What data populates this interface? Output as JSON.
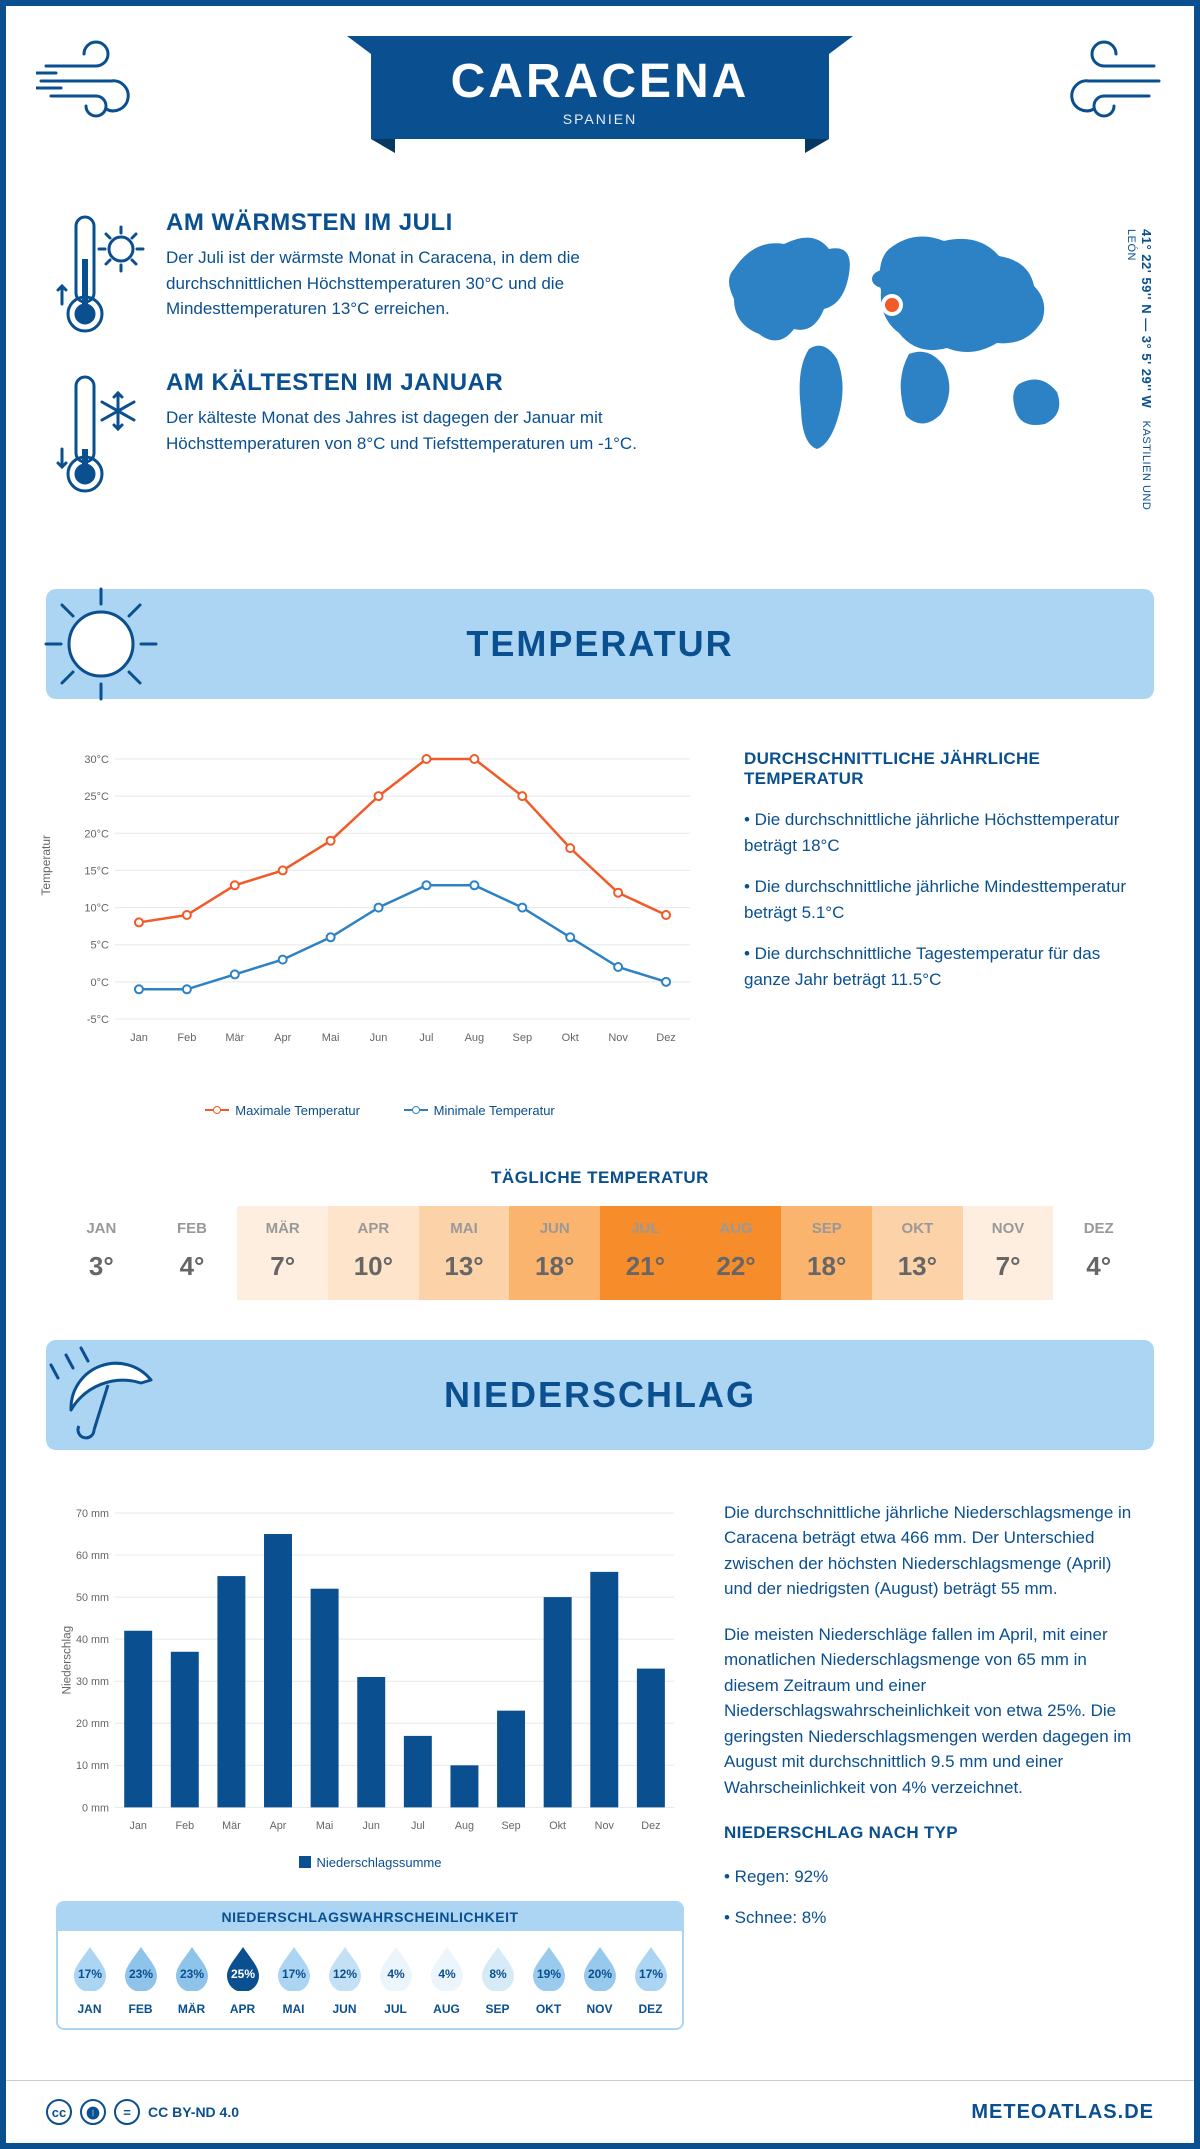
{
  "colors": {
    "primary": "#0a4f8f",
    "lightblue": "#abd5f3",
    "midblue": "#2d82c6",
    "orange": "#f15a29",
    "grid": "#e8e8e8"
  },
  "header": {
    "title": "CARACENA",
    "subtitle": "SPANIEN"
  },
  "coords": {
    "text": "41° 22' 59'' N — 3° 5' 29'' W",
    "region": "KASTILIEN UND LEÓN"
  },
  "intro": {
    "warm": {
      "heading": "AM WÄRMSTEN IM JULI",
      "text": "Der Juli ist der wärmste Monat in Caracena, in dem die durchschnittlichen Höchsttemperaturen 30°C und die Mindesttemperaturen 13°C erreichen."
    },
    "cold": {
      "heading": "AM KÄLTESTEN IM JANUAR",
      "text": "Der kälteste Monat des Jahres ist dagegen der Januar mit Höchsttemperaturen von 8°C und Tiefsttemperaturen um -1°C."
    }
  },
  "temperature": {
    "section_title": "TEMPERATUR",
    "ylabel": "Temperatur",
    "months": [
      "Jan",
      "Feb",
      "Mär",
      "Apr",
      "Mai",
      "Jun",
      "Jul",
      "Aug",
      "Sep",
      "Okt",
      "Nov",
      "Dez"
    ],
    "yticks": [
      "-5°C",
      "0°C",
      "5°C",
      "10°C",
      "15°C",
      "20°C",
      "25°C",
      "30°C"
    ],
    "ymin": -5,
    "ymax": 30,
    "series": {
      "max": {
        "label": "Maximale Temperatur",
        "color": "#f15a29",
        "values": [
          8,
          9,
          13,
          15,
          19,
          25,
          30,
          30,
          25,
          18,
          12,
          9
        ]
      },
      "min": {
        "label": "Minimale Temperatur",
        "color": "#2d82c6",
        "values": [
          -1,
          -1,
          1,
          3,
          6,
          10,
          13,
          13,
          10,
          6,
          2,
          0
        ]
      }
    },
    "info": {
      "heading": "DURCHSCHNITTLICHE JÄHRLICHE TEMPERATUR",
      "bullets": [
        "• Die durchschnittliche jährliche Höchsttemperatur beträgt 18°C",
        "• Die durchschnittliche jährliche Mindesttemperatur beträgt 5.1°C",
        "• Die durchschnittliche Tagestemperatur für das ganze Jahr beträgt 11.5°C"
      ]
    },
    "daily": {
      "heading": "TÄGLICHE TEMPERATUR",
      "months": [
        "JAN",
        "FEB",
        "MÄR",
        "APR",
        "MAI",
        "JUN",
        "JUL",
        "AUG",
        "SEP",
        "OKT",
        "NOV",
        "DEZ"
      ],
      "values": [
        "3°",
        "4°",
        "7°",
        "10°",
        "13°",
        "18°",
        "21°",
        "22°",
        "18°",
        "13°",
        "7°",
        "4°"
      ],
      "bgcolors": [
        "#ffffff",
        "#ffffff",
        "#fdeee0",
        "#fde4ca",
        "#fcd3a8",
        "#fbb46d",
        "#f78c2a",
        "#f78c2a",
        "#fbb46d",
        "#fcd3a8",
        "#fdeee0",
        "#ffffff"
      ]
    }
  },
  "precipitation": {
    "section_title": "NIEDERSCHLAG",
    "ylabel": "Niederschlag",
    "months": [
      "Jan",
      "Feb",
      "Mär",
      "Apr",
      "Mai",
      "Jun",
      "Jul",
      "Aug",
      "Sep",
      "Okt",
      "Nov",
      "Dez"
    ],
    "yticks": [
      "0 mm",
      "10 mm",
      "20 mm",
      "30 mm",
      "40 mm",
      "50 mm",
      "60 mm",
      "70 mm"
    ],
    "ymax": 70,
    "values": [
      42,
      37,
      55,
      65,
      52,
      31,
      17,
      10,
      23,
      50,
      56,
      33
    ],
    "bar_color": "#0a4f8f",
    "legend": "Niederschlagssumme",
    "text1": "Die durchschnittliche jährliche Niederschlagsmenge in Caracena beträgt etwa 466 mm. Der Unterschied zwischen der höchsten Niederschlagsmenge (April) und der niedrigsten (August) beträgt 55 mm.",
    "text2": "Die meisten Niederschläge fallen im April, mit einer monatlichen Niederschlagsmenge von 65 mm in diesem Zeitraum und einer Niederschlagswahrscheinlichkeit von etwa 25%. Die geringsten Niederschlagsmengen werden dagegen im August mit durchschnittlich 9.5 mm und einer Wahrscheinlichkeit von 4% verzeichnet.",
    "bytype": {
      "heading": "NIEDERSCHLAG NACH TYP",
      "items": [
        "• Regen: 92%",
        "• Schnee: 8%"
      ]
    },
    "probability": {
      "heading": "NIEDERSCHLAGSWAHRSCHEINLICHKEIT",
      "months": [
        "JAN",
        "FEB",
        "MÄR",
        "APR",
        "MAI",
        "JUN",
        "JUL",
        "AUG",
        "SEP",
        "OKT",
        "NOV",
        "DEZ"
      ],
      "values": [
        "17%",
        "23%",
        "23%",
        "25%",
        "17%",
        "12%",
        "4%",
        "4%",
        "8%",
        "19%",
        "20%",
        "17%"
      ],
      "max_index": 3,
      "fill_colors": [
        "#abd5f3",
        "#8fc4ea",
        "#8fc4ea",
        "#0a4f8f",
        "#abd5f3",
        "#c3e0f4",
        "#ecf5fc",
        "#ecf5fc",
        "#d6eaf8",
        "#9acbed",
        "#97c9ec",
        "#abd5f3"
      ],
      "text_colors": [
        "#0a4f8f",
        "#0a4f8f",
        "#0a4f8f",
        "#ffffff",
        "#0a4f8f",
        "#0a4f8f",
        "#0a4f8f",
        "#0a4f8f",
        "#0a4f8f",
        "#0a4f8f",
        "#0a4f8f",
        "#0a4f8f"
      ]
    }
  },
  "footer": {
    "license": "CC BY-ND 4.0",
    "site": "METEOATLAS.DE"
  }
}
